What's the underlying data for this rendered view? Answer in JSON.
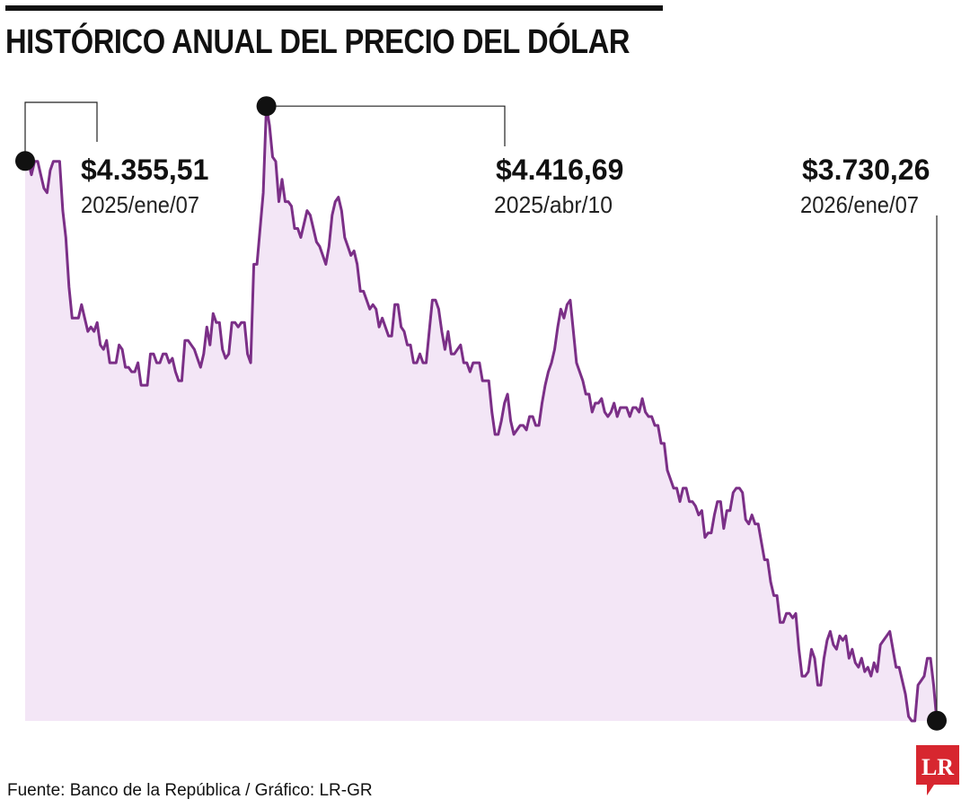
{
  "title": "HISTÓRICO ANUAL DEL PRECIO DEL DÓLAR",
  "source": "Fuente: Banco de la República / Gráfico: LR-GR",
  "logo_text": "LR",
  "colors": {
    "line": "#7b2f87",
    "fill": "#f3e6f6",
    "icon": "#dcc0e0",
    "marker": "#111111",
    "logo": "#d7262f"
  },
  "icons": [
    "dollar-coin-icon",
    "lr-logo-icon"
  ],
  "chart_data": {
    "type": "area",
    "title": "HISTÓRICO ANUAL DEL PRECIO DEL DÓLAR",
    "xlabel": "",
    "ylabel": "",
    "x_range": [
      "2025-01-07",
      "2026-01-07"
    ],
    "ylim": [
      3730,
      4440
    ],
    "grid": false,
    "legend": "none",
    "series": [
      {
        "values": [
          4355.51,
          4355.51,
          4340,
          4355,
          4355,
          4340,
          4325,
          4320,
          4345,
          4355,
          4355,
          4355,
          4300,
          4270,
          4215,
          4180,
          4180,
          4180,
          4195,
          4180,
          4165,
          4170,
          4165,
          4175,
          4150,
          4145,
          4155,
          4130,
          4130,
          4130,
          4150,
          4145,
          4125,
          4125,
          4120,
          4120,
          4130,
          4105,
          4105,
          4105,
          4140,
          4140,
          4130,
          4130,
          4140,
          4140,
          4130,
          4135,
          4120,
          4110,
          4110,
          4155,
          4155,
          4150,
          4145,
          4135,
          4125,
          4140,
          4170,
          4150,
          4185,
          4175,
          4175,
          4145,
          4135,
          4140,
          4175,
          4175,
          4170,
          4175,
          4175,
          4140,
          4130,
          4240,
          4240,
          4280,
          4320,
          4416.69,
          4395,
          4360,
          4355,
          4310,
          4335,
          4310,
          4310,
          4305,
          4280,
          4280,
          4270,
          4285,
          4300,
          4295,
          4280,
          4265,
          4260,
          4250,
          4240,
          4260,
          4295,
          4310,
          4315,
          4300,
          4270,
          4260,
          4250,
          4255,
          4240,
          4210,
          4210,
          4200,
          4190,
          4195,
          4190,
          4170,
          4180,
          4170,
          4160,
          4160,
          4195,
          4195,
          4170,
          4165,
          4150,
          4150,
          4130,
          4130,
          4140,
          4130,
          4130,
          4165,
          4200,
          4200,
          4190,
          4165,
          4145,
          4165,
          4140,
          4140,
          4145,
          4150,
          4130,
          4130,
          4120,
          4130,
          4130,
          4130,
          4110,
          4110,
          4110,
          4075,
          4050,
          4050,
          4065,
          4085,
          4095,
          4065,
          4050,
          4055,
          4060,
          4060,
          4055,
          4070,
          4070,
          4060,
          4060,
          4085,
          4105,
          4120,
          4130,
          4145,
          4170,
          4190,
          4180,
          4195,
          4200,
          4165,
          4130,
          4120,
          4110,
          4095,
          4095,
          4075,
          4085,
          4085,
          4090,
          4075,
          4070,
          4075,
          4085,
          4070,
          4080,
          4080,
          4080,
          4070,
          4080,
          4080,
          4075,
          4090,
          4075,
          4070,
          4070,
          4060,
          4060,
          4040,
          4040,
          4010,
          4000,
          3990,
          3990,
          3975,
          3990,
          3990,
          3975,
          3975,
          3970,
          3960,
          3965,
          3935,
          3940,
          3940,
          3960,
          3975,
          3975,
          3945,
          3965,
          3965,
          3985,
          3990,
          3990,
          3985,
          3955,
          3950,
          3960,
          3950,
          3950,
          3930,
          3910,
          3910,
          3885,
          3870,
          3870,
          3840,
          3840,
          3850,
          3850,
          3845,
          3850,
          3810,
          3780,
          3780,
          3785,
          3810,
          3800,
          3770,
          3770,
          3800,
          3820,
          3830,
          3815,
          3810,
          3825,
          3820,
          3825,
          3800,
          3810,
          3795,
          3790,
          3800,
          3785,
          3790,
          3780,
          3795,
          3785,
          3815,
          3820,
          3825,
          3830,
          3810,
          3790,
          3790,
          3775,
          3760,
          3735,
          3730,
          3730,
          3770,
          3775,
          3780,
          3800,
          3800,
          3770,
          3730.26
        ]
      }
    ],
    "annotations": [
      {
        "value": "$4.355,51",
        "date": "2025/ene/07"
      },
      {
        "value": "$4.416,69",
        "date": "2025/abr/10"
      },
      {
        "value": "$3.730,26",
        "date": "2026/ene/07"
      }
    ]
  }
}
